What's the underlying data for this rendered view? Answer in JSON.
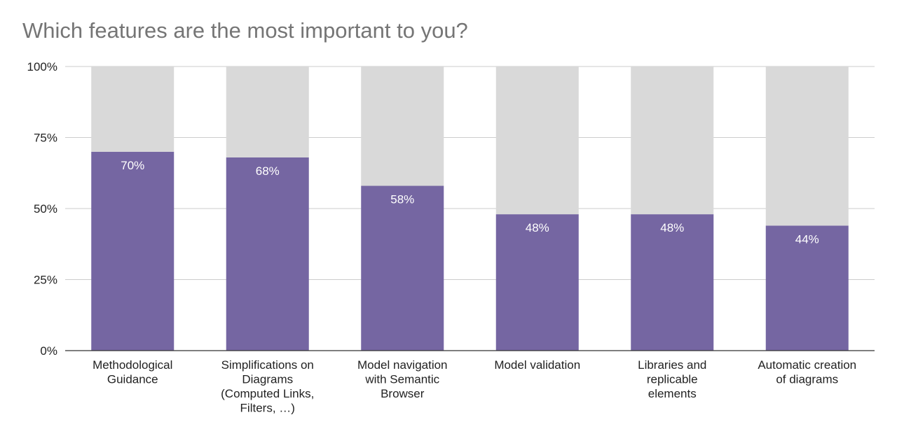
{
  "chart_data": {
    "type": "bar",
    "stacked_to_percent": true,
    "title": "Which features are the most important to you?",
    "xlabel": "",
    "ylabel": "",
    "ylim": [
      0,
      100
    ],
    "y_ticks": [
      "0%",
      "25%",
      "50%",
      "75%",
      "100%"
    ],
    "categories": [
      "Methodological Guidance",
      "Simplifications on Diagrams (Computed Links, Filters, …)",
      "Model navigation with Semantic Browser",
      "Model validation",
      "Libraries and replicable elements",
      "Automatic creation of diagrams"
    ],
    "category_label_lines": [
      [
        "Methodological",
        "Guidance"
      ],
      [
        "Simplifications on",
        "Diagrams",
        "(Computed Links,",
        "Filters, …)"
      ],
      [
        "Model navigation",
        "with Semantic",
        "Browser"
      ],
      [
        "Model validation"
      ],
      [
        "Libraries and",
        "replicable",
        "elements"
      ],
      [
        "Automatic creation",
        "of diagrams"
      ]
    ],
    "series": [
      {
        "values": [
          70,
          68,
          58,
          48,
          48,
          44
        ],
        "color": "#7566a2"
      },
      {
        "values": [
          30,
          32,
          42,
          52,
          52,
          56
        ],
        "color": "#d9d9d9"
      }
    ],
    "data_labels": [
      "70%",
      "68%",
      "58%",
      "48%",
      "48%",
      "44%"
    ],
    "grid": true,
    "legend": "none"
  }
}
